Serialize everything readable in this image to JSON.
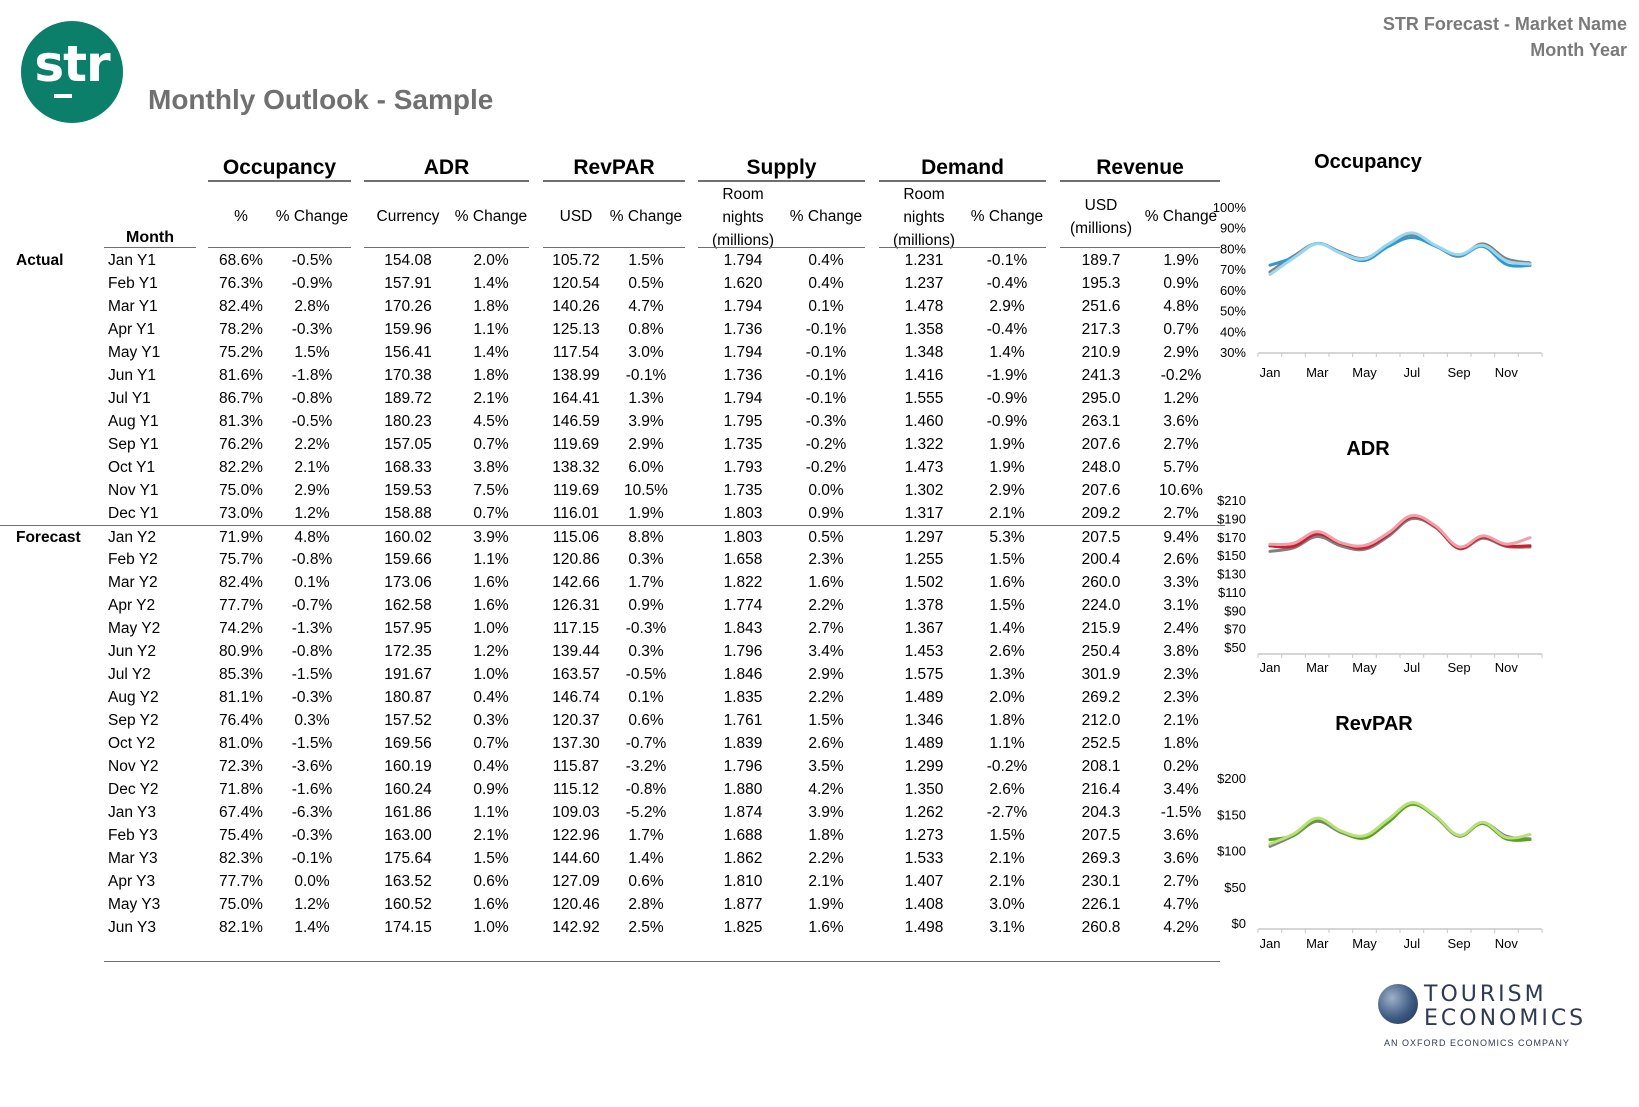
{
  "header": {
    "logo_text": "str",
    "title": "Monthly Outlook - Sample",
    "right_line1": "STR Forecast - Market Name",
    "right_line2": "Month Year"
  },
  "table": {
    "groups": [
      "Occupancy",
      "ADR",
      "RevPAR",
      "Supply",
      "Demand",
      "Revenue"
    ],
    "month_header": "Month",
    "subheaders": {
      "occ_pct": "%",
      "occ_chg": "% Change",
      "adr_cur": "Currency",
      "adr_chg": "% Change",
      "revpar_usd": "USD",
      "revpar_chg": "% Change",
      "supply_unit_1": "Room",
      "supply_unit_2": "nights",
      "supply_unit_3": "(millions)",
      "supply_chg": "% Change",
      "demand_unit_1": "Room",
      "demand_unit_2": "nights",
      "demand_unit_3": "(millions)",
      "demand_chg": "% Change",
      "rev_unit_1": "USD",
      "rev_unit_2": "(millions)",
      "rev_chg": "% Change"
    },
    "section_labels": {
      "actual": "Actual",
      "forecast": "Forecast"
    },
    "rows": [
      [
        "Jan Y1",
        "68.6%",
        "-0.5%",
        "154.08",
        "2.0%",
        "105.72",
        "1.5%",
        "1.794",
        "0.4%",
        "1.231",
        "-0.1%",
        "189.7",
        "1.9%"
      ],
      [
        "Feb Y1",
        "76.3%",
        "-0.9%",
        "157.91",
        "1.4%",
        "120.54",
        "0.5%",
        "1.620",
        "0.4%",
        "1.237",
        "-0.4%",
        "195.3",
        "0.9%"
      ],
      [
        "Mar Y1",
        "82.4%",
        "2.8%",
        "170.26",
        "1.8%",
        "140.26",
        "4.7%",
        "1.794",
        "0.1%",
        "1.478",
        "2.9%",
        "251.6",
        "4.8%"
      ],
      [
        "Apr Y1",
        "78.2%",
        "-0.3%",
        "159.96",
        "1.1%",
        "125.13",
        "0.8%",
        "1.736",
        "-0.1%",
        "1.358",
        "-0.4%",
        "217.3",
        "0.7%"
      ],
      [
        "May Y1",
        "75.2%",
        "1.5%",
        "156.41",
        "1.4%",
        "117.54",
        "3.0%",
        "1.794",
        "-0.1%",
        "1.348",
        "1.4%",
        "210.9",
        "2.9%"
      ],
      [
        "Jun Y1",
        "81.6%",
        "-1.8%",
        "170.38",
        "1.8%",
        "138.99",
        "-0.1%",
        "1.736",
        "-0.1%",
        "1.416",
        "-1.9%",
        "241.3",
        "-0.2%"
      ],
      [
        "Jul Y1",
        "86.7%",
        "-0.8%",
        "189.72",
        "2.1%",
        "164.41",
        "1.3%",
        "1.794",
        "-0.1%",
        "1.555",
        "-0.9%",
        "295.0",
        "1.2%"
      ],
      [
        "Aug Y1",
        "81.3%",
        "-0.5%",
        "180.23",
        "4.5%",
        "146.59",
        "3.9%",
        "1.795",
        "-0.3%",
        "1.460",
        "-0.9%",
        "263.1",
        "3.6%"
      ],
      [
        "Sep Y1",
        "76.2%",
        "2.2%",
        "157.05",
        "0.7%",
        "119.69",
        "2.9%",
        "1.735",
        "-0.2%",
        "1.322",
        "1.9%",
        "207.6",
        "2.7%"
      ],
      [
        "Oct Y1",
        "82.2%",
        "2.1%",
        "168.33",
        "3.8%",
        "138.32",
        "6.0%",
        "1.793",
        "-0.2%",
        "1.473",
        "1.9%",
        "248.0",
        "5.7%"
      ],
      [
        "Nov  Y1",
        "75.0%",
        "2.9%",
        "159.53",
        "7.5%",
        "119.69",
        "10.5%",
        "1.735",
        "0.0%",
        "1.302",
        "2.9%",
        "207.6",
        "10.6%"
      ],
      [
        "Dec Y1",
        "73.0%",
        "1.2%",
        "158.88",
        "0.7%",
        "116.01",
        "1.9%",
        "1.803",
        "0.9%",
        "1.317",
        "2.1%",
        "209.2",
        "2.7%"
      ],
      [
        "Jan Y2",
        "71.9%",
        "4.8%",
        "160.02",
        "3.9%",
        "115.06",
        "8.8%",
        "1.803",
        "0.5%",
        "1.297",
        "5.3%",
        "207.5",
        "9.4%"
      ],
      [
        "Feb Y2",
        "75.7%",
        "-0.8%",
        "159.66",
        "1.1%",
        "120.86",
        "0.3%",
        "1.658",
        "2.3%",
        "1.255",
        "1.5%",
        "200.4",
        "2.6%"
      ],
      [
        "Mar Y2",
        "82.4%",
        "0.1%",
        "173.06",
        "1.6%",
        "142.66",
        "1.7%",
        "1.822",
        "1.6%",
        "1.502",
        "1.6%",
        "260.0",
        "3.3%"
      ],
      [
        "Apr Y2",
        "77.7%",
        "-0.7%",
        "162.58",
        "1.6%",
        "126.31",
        "0.9%",
        "1.774",
        "2.2%",
        "1.378",
        "1.5%",
        "224.0",
        "3.1%"
      ],
      [
        "May Y2",
        "74.2%",
        "-1.3%",
        "157.95",
        "1.0%",
        "117.15",
        "-0.3%",
        "1.843",
        "2.7%",
        "1.367",
        "1.4%",
        "215.9",
        "2.4%"
      ],
      [
        "Jun Y2",
        "80.9%",
        "-0.8%",
        "172.35",
        "1.2%",
        "139.44",
        "0.3%",
        "1.796",
        "3.4%",
        "1.453",
        "2.6%",
        "250.4",
        "3.8%"
      ],
      [
        "Jul Y2",
        "85.3%",
        "-1.5%",
        "191.67",
        "1.0%",
        "163.57",
        "-0.5%",
        "1.846",
        "2.9%",
        "1.575",
        "1.3%",
        "301.9",
        "2.3%"
      ],
      [
        "Aug Y2",
        "81.1%",
        "-0.3%",
        "180.87",
        "0.4%",
        "146.74",
        "0.1%",
        "1.835",
        "2.2%",
        "1.489",
        "2.0%",
        "269.2",
        "2.3%"
      ],
      [
        "Sep Y2",
        "76.4%",
        "0.3%",
        "157.52",
        "0.3%",
        "120.37",
        "0.6%",
        "1.761",
        "1.5%",
        "1.346",
        "1.8%",
        "212.0",
        "2.1%"
      ],
      [
        "Oct Y2",
        "81.0%",
        "-1.5%",
        "169.56",
        "0.7%",
        "137.30",
        "-0.7%",
        "1.839",
        "2.6%",
        "1.489",
        "1.1%",
        "252.5",
        "1.8%"
      ],
      [
        "Nov  Y2",
        "72.3%",
        "-3.6%",
        "160.19",
        "0.4%",
        "115.87",
        "-3.2%",
        "1.796",
        "3.5%",
        "1.299",
        "-0.2%",
        "208.1",
        "0.2%"
      ],
      [
        "Dec Y2",
        "71.8%",
        "-1.6%",
        "160.24",
        "0.9%",
        "115.12",
        "-0.8%",
        "1.880",
        "4.2%",
        "1.350",
        "2.6%",
        "216.4",
        "3.4%"
      ],
      [
        "Jan Y3",
        "67.4%",
        "-6.3%",
        "161.86",
        "1.1%",
        "109.03",
        "-5.2%",
        "1.874",
        "3.9%",
        "1.262",
        "-2.7%",
        "204.3",
        "-1.5%"
      ],
      [
        "Feb Y3",
        "75.4%",
        "-0.3%",
        "163.00",
        "2.1%",
        "122.96",
        "1.7%",
        "1.688",
        "1.8%",
        "1.273",
        "1.5%",
        "207.5",
        "3.6%"
      ],
      [
        "Mar Y3",
        "82.3%",
        "-0.1%",
        "175.64",
        "1.5%",
        "144.60",
        "1.4%",
        "1.862",
        "2.2%",
        "1.533",
        "2.1%",
        "269.3",
        "3.6%"
      ],
      [
        "Apr Y3",
        "77.7%",
        "0.0%",
        "163.52",
        "0.6%",
        "127.09",
        "0.6%",
        "1.810",
        "2.1%",
        "1.407",
        "2.1%",
        "230.1",
        "2.7%"
      ],
      [
        "May Y3",
        "75.0%",
        "1.2%",
        "160.52",
        "1.6%",
        "120.46",
        "2.8%",
        "1.877",
        "1.9%",
        "1.408",
        "3.0%",
        "226.1",
        "4.7%"
      ],
      [
        "Jun Y3",
        "82.1%",
        "1.4%",
        "174.15",
        "1.0%",
        "142.92",
        "2.5%",
        "1.825",
        "1.6%",
        "1.498",
        "3.1%",
        "260.8",
        "4.2%"
      ]
    ]
  },
  "chart_data": [
    {
      "type": "line",
      "title": "Occupancy",
      "categories": [
        "Jan",
        "Feb",
        "Mar",
        "Apr",
        "May",
        "Jun",
        "Jul",
        "Aug",
        "Sep",
        "Oct",
        "Nov",
        "Dec"
      ],
      "tick_labels": [
        "Jan",
        "Mar",
        "May",
        "Jul",
        "Sep",
        "Nov"
      ],
      "ylim": [
        30,
        100
      ],
      "ytick_labels": [
        "100%",
        "90%",
        "80%",
        "70%",
        "60%",
        "50%",
        "40%",
        "30%"
      ],
      "ytick_values": [
        100,
        90,
        80,
        70,
        60,
        50,
        40,
        30
      ],
      "series": [
        {
          "color": "#808080",
          "values": [
            68.6,
            76.3,
            82.4,
            78.2,
            75.2,
            81.6,
            86.7,
            81.3,
            76.2,
            82.2,
            75.0,
            73.0
          ]
        },
        {
          "color": "#3399cc",
          "values": [
            71.9,
            75.7,
            82.4,
            77.7,
            74.2,
            80.9,
            85.3,
            81.1,
            76.4,
            81.0,
            72.3,
            71.8
          ]
        },
        {
          "color": "#99d6f0",
          "values": [
            67.4,
            75.4,
            82.3,
            77.7,
            75.0,
            82.1,
            87.5,
            81.5,
            77.0,
            81.5,
            74.0,
            72.5
          ]
        }
      ]
    },
    {
      "type": "line",
      "title": "ADR",
      "categories": [
        "Jan",
        "Feb",
        "Mar",
        "Apr",
        "May",
        "Jun",
        "Jul",
        "Aug",
        "Sep",
        "Oct",
        "Nov",
        "Dec"
      ],
      "tick_labels": [
        "Jan",
        "Mar",
        "May",
        "Jul",
        "Sep",
        "Nov"
      ],
      "ylim": [
        50,
        210
      ],
      "ytick_labels": [
        "$210",
        "$190",
        "$170",
        "$150",
        "$130",
        "$110",
        "$90",
        "$70",
        "$50"
      ],
      "ytick_values": [
        210,
        190,
        170,
        150,
        130,
        110,
        90,
        70,
        50
      ],
      "series": [
        {
          "color": "#808080",
          "values": [
            154.08,
            157.91,
            170.26,
            159.96,
            156.41,
            170.38,
            189.72,
            180.23,
            157.05,
            168.33,
            159.53,
            158.88
          ]
        },
        {
          "color": "#cc1f2e",
          "values": [
            160.02,
            159.66,
            173.06,
            162.58,
            157.95,
            172.35,
            191.67,
            180.87,
            157.52,
            169.56,
            160.19,
            160.24
          ]
        },
        {
          "color": "#f0a0a8",
          "values": [
            161.86,
            163.0,
            175.64,
            163.52,
            160.52,
            174.15,
            193.0,
            182.0,
            159.0,
            171.0,
            162.0,
            169.0
          ]
        }
      ]
    },
    {
      "type": "line",
      "title": "RevPAR",
      "categories": [
        "Jan",
        "Feb",
        "Mar",
        "Apr",
        "May",
        "Jun",
        "Jul",
        "Aug",
        "Sep",
        "Oct",
        "Nov",
        "Dec"
      ],
      "tick_labels": [
        "Jan",
        "Mar",
        "May",
        "Jul",
        "Sep",
        "Nov"
      ],
      "ylim": [
        0,
        200
      ],
      "ytick_labels": [
        "$200",
        "$150",
        "$100",
        "$50",
        "$0"
      ],
      "ytick_values": [
        200,
        150,
        100,
        50,
        0
      ],
      "series": [
        {
          "color": "#808080",
          "values": [
            105.72,
            120.54,
            140.26,
            125.13,
            117.54,
            138.99,
            164.41,
            146.59,
            119.69,
            138.32,
            119.69,
            116.01
          ]
        },
        {
          "color": "#5aa31e",
          "values": [
            115.06,
            120.86,
            142.66,
            126.31,
            117.15,
            139.44,
            163.57,
            146.74,
            120.37,
            137.3,
            115.87,
            115.12
          ]
        },
        {
          "color": "#b9e07a",
          "values": [
            109.03,
            122.96,
            144.6,
            127.09,
            120.46,
            142.92,
            166.0,
            148.0,
            121.0,
            139.0,
            118.0,
            122.0
          ]
        }
      ]
    }
  ],
  "footer_logo": {
    "word1": "TOURISM",
    "word2": "ECONOMICS",
    "tagline": "AN OXFORD ECONOMICS COMPANY"
  }
}
